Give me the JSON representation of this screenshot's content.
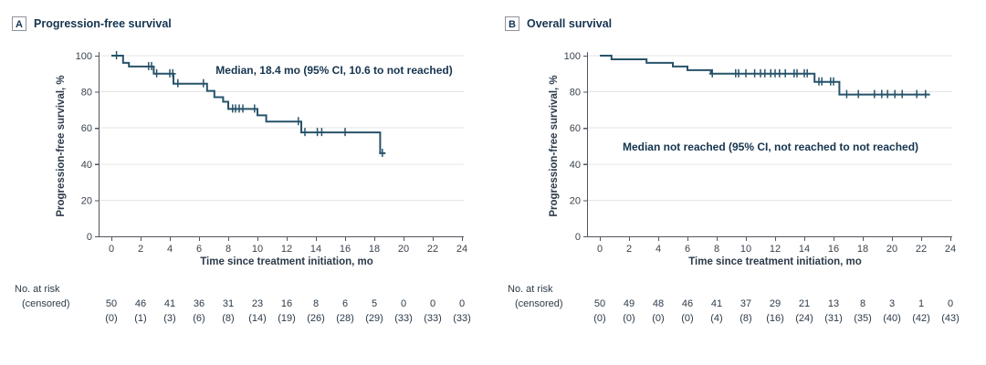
{
  "figure": {
    "colors": {
      "curve": "#27536a",
      "title_text": "#15344f",
      "axis_text": "#39434e",
      "grid": "#e4e4e4",
      "axis_line": "#50565e"
    },
    "panels": [
      {
        "label": "A",
        "title": "Progression-free survival",
        "annotation": "Median, 18.4 mo (95% CI, 10.6 to not reached)",
        "y_axis_label": "Progression-free survival, %",
        "x_axis_label": "Time since treatment initiation, mo",
        "risk_header": "No. at risk",
        "risk_subheader": "(censored)"
      },
      {
        "label": "B",
        "title": "Overall survival",
        "annotation": "Median not reached (95% CI, not reached to not reached)",
        "y_axis_label": "Progression-free survival, %",
        "x_axis_label": "Time since treatment initiation, mo",
        "risk_header": "No. at risk",
        "risk_subheader": "(censored)"
      }
    ]
  },
  "chart_data": [
    {
      "type": "line",
      "subtype": "kaplan-meier-step",
      "title": "Progression-free survival",
      "xlabel": "Time since treatment initiation, mo",
      "ylabel": "Progression-free survival, %",
      "annotation": "Median, 18.4 mo (95% CI, 10.6 to not reached)",
      "median_months": 18.4,
      "ci_95": "10.6 to not reached",
      "xlim": [
        0,
        24
      ],
      "ylim": [
        0,
        100
      ],
      "x_ticks": [
        0,
        2,
        4,
        6,
        8,
        10,
        12,
        14,
        16,
        18,
        20,
        22,
        24
      ],
      "y_ticks": [
        0,
        20,
        40,
        60,
        80,
        100
      ],
      "grid": true,
      "steps": [
        [
          0,
          100
        ],
        [
          0.8,
          96
        ],
        [
          1.2,
          94
        ],
        [
          2.9,
          90
        ],
        [
          4.25,
          84.5
        ],
        [
          6.55,
          80.5
        ],
        [
          7.05,
          77
        ],
        [
          7.65,
          74.5
        ],
        [
          8.0,
          70.5
        ],
        [
          10.0,
          67
        ],
        [
          10.6,
          63.5
        ],
        [
          13.0,
          57.5
        ],
        [
          18.4,
          46
        ]
      ],
      "end_time": 18.75,
      "censor_marks": [
        [
          0.35,
          100
        ],
        [
          2.55,
          94
        ],
        [
          2.75,
          94
        ],
        [
          3.1,
          90
        ],
        [
          4.0,
          90
        ],
        [
          4.2,
          90
        ],
        [
          4.55,
          84.5
        ],
        [
          6.3,
          84.5
        ],
        [
          8.3,
          70.5
        ],
        [
          8.5,
          70.5
        ],
        [
          8.75,
          70.5
        ],
        [
          9.0,
          70.5
        ],
        [
          9.8,
          70.5
        ],
        [
          12.8,
          63.5
        ],
        [
          13.25,
          57.5
        ],
        [
          14.1,
          57.5
        ],
        [
          14.4,
          57.5
        ],
        [
          16.0,
          57.5
        ],
        [
          18.55,
          46
        ]
      ],
      "at_risk": {
        "times": [
          0,
          2,
          4,
          6,
          8,
          10,
          12,
          14,
          16,
          18,
          20,
          22,
          24
        ],
        "n": [
          50,
          46,
          41,
          36,
          31,
          23,
          16,
          8,
          6,
          5,
          0,
          0,
          0
        ],
        "censored": [
          0,
          1,
          3,
          6,
          8,
          14,
          19,
          26,
          28,
          29,
          33,
          33,
          33
        ]
      }
    },
    {
      "type": "line",
      "subtype": "kaplan-meier-step",
      "title": "Overall survival",
      "xlabel": "Time since treatment initiation, mo",
      "ylabel": "Progression-free survival, %",
      "annotation": "Median not reached (95% CI, not reached to not reached)",
      "median_months": null,
      "ci_95": "not reached to not reached",
      "xlim": [
        0,
        24
      ],
      "ylim": [
        0,
        100
      ],
      "x_ticks": [
        0,
        2,
        4,
        6,
        8,
        10,
        12,
        14,
        16,
        18,
        20,
        22,
        24
      ],
      "y_ticks": [
        0,
        20,
        40,
        60,
        80,
        100
      ],
      "grid": true,
      "steps": [
        [
          0,
          100
        ],
        [
          0.8,
          98
        ],
        [
          3.2,
          96
        ],
        [
          5.0,
          94
        ],
        [
          6.0,
          92
        ],
        [
          7.6,
          90
        ],
        [
          14.7,
          85.5
        ],
        [
          16.4,
          78.5
        ]
      ],
      "end_time": 22.6,
      "censor_marks": [
        [
          7.7,
          90
        ],
        [
          9.3,
          90
        ],
        [
          9.5,
          90
        ],
        [
          10.0,
          90
        ],
        [
          10.6,
          90
        ],
        [
          11.0,
          90
        ],
        [
          11.3,
          90
        ],
        [
          11.7,
          90
        ],
        [
          12.0,
          90
        ],
        [
          12.3,
          90
        ],
        [
          12.7,
          90
        ],
        [
          13.3,
          90
        ],
        [
          13.5,
          90
        ],
        [
          14.0,
          90
        ],
        [
          14.2,
          90
        ],
        [
          15.0,
          85.5
        ],
        [
          15.2,
          85.5
        ],
        [
          15.8,
          85.5
        ],
        [
          16.0,
          85.5
        ],
        [
          16.9,
          78.5
        ],
        [
          17.7,
          78.5
        ],
        [
          18.8,
          78.5
        ],
        [
          19.3,
          78.5
        ],
        [
          19.7,
          78.5
        ],
        [
          20.2,
          78.5
        ],
        [
          20.7,
          78.5
        ],
        [
          21.7,
          78.5
        ],
        [
          22.3,
          78.5
        ]
      ],
      "at_risk": {
        "times": [
          0,
          2,
          4,
          6,
          8,
          10,
          12,
          14,
          16,
          18,
          20,
          22,
          24
        ],
        "n": [
          50,
          49,
          48,
          46,
          41,
          37,
          29,
          21,
          13,
          8,
          3,
          1,
          0
        ],
        "censored": [
          0,
          0,
          0,
          0,
          4,
          8,
          16,
          24,
          31,
          35,
          40,
          42,
          43
        ]
      }
    }
  ]
}
